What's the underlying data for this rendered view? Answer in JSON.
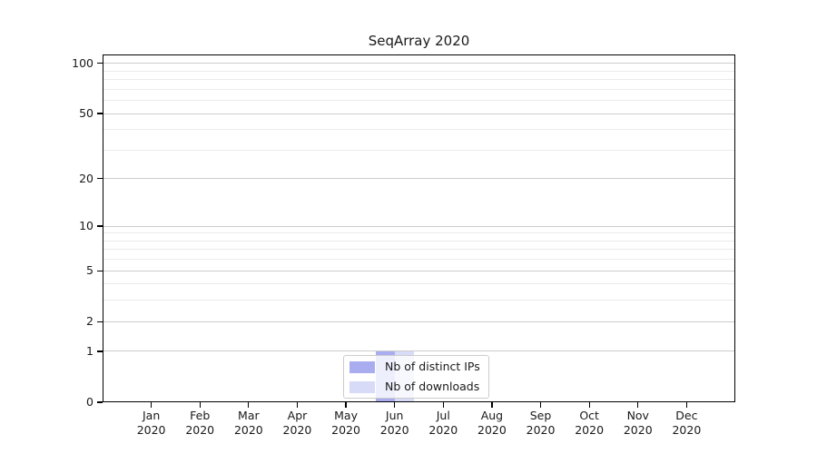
{
  "chart_data": {
    "type": "bar",
    "title": "SeqArray 2020",
    "x_ticks": [
      [
        "Jan",
        "2020"
      ],
      [
        "Feb",
        "2020"
      ],
      [
        "Mar",
        "2020"
      ],
      [
        "Apr",
        "2020"
      ],
      [
        "May",
        "2020"
      ],
      [
        "Jun",
        "2020"
      ],
      [
        "Jul",
        "2020"
      ],
      [
        "Aug",
        "2020"
      ],
      [
        "Sep",
        "2020"
      ],
      [
        "Oct",
        "2020"
      ],
      [
        "Nov",
        "2020"
      ],
      [
        "Dec",
        "2020"
      ]
    ],
    "series": [
      {
        "name": "Nb of distinct IPs",
        "color": "#a9adf0",
        "values": [
          0,
          0,
          0,
          0,
          0,
          1,
          0,
          0,
          0,
          0,
          0,
          0
        ]
      },
      {
        "name": "Nb of downloads",
        "color": "#d7dbf8",
        "values": [
          0,
          0,
          0,
          0,
          0,
          1,
          0,
          0,
          0,
          0,
          0,
          0
        ]
      }
    ],
    "y_scale": "log1p",
    "y_major_ticks": [
      0,
      1,
      2,
      5,
      10,
      20,
      50,
      100
    ],
    "y_minor_ticks": [
      3,
      4,
      6,
      7,
      8,
      9,
      30,
      40,
      60,
      70,
      80,
      90
    ],
    "ylim": [
      0,
      113
    ],
    "grid": true,
    "legend_position": "lower center",
    "colors": {
      "major_grid": "#cccccc",
      "minor_grid": "#ebebeb",
      "axis": "#000000",
      "text": "#1a1a1a",
      "legend_border": "#cccccc",
      "legend_bg": "rgba(255,255,255,0.8)"
    }
  }
}
